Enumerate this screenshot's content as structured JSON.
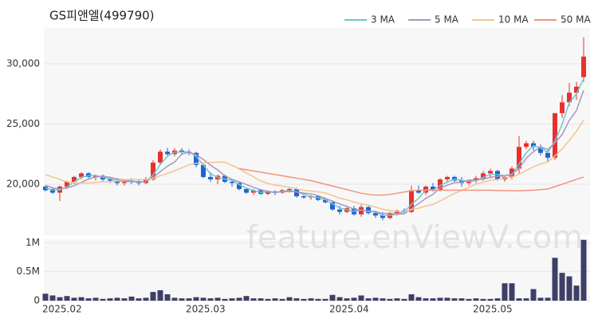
{
  "watermark": "feature.enViewV.com",
  "chart_data": [
    {
      "type": "candlestick",
      "title": "GS피앤엘(499790)",
      "up_color": "#e8312f",
      "down_color": "#1f62d5",
      "open": [
        19800,
        19600,
        19300,
        19800,
        20200,
        20600,
        20900,
        20600,
        20700,
        20400,
        20300,
        20100,
        20300,
        20200,
        20100,
        20400,
        21800,
        22700,
        22500,
        22800,
        22700,
        22600,
        21600,
        20600,
        20400,
        20700,
        20200,
        20100,
        19600,
        19300,
        19500,
        19200,
        19400,
        19300,
        19500,
        19600,
        19000,
        18900,
        19000,
        18700,
        18500,
        17900,
        17700,
        18000,
        17500,
        18100,
        17600,
        17400,
        17200,
        17600,
        17800,
        17700,
        19500,
        19300,
        19800,
        19500,
        20400,
        20600,
        20300,
        20100,
        20300,
        20500,
        20900,
        21100,
        20400,
        20600,
        21300,
        23100,
        23400,
        23100,
        22600,
        22200,
        25900,
        26800,
        27600,
        28900
      ],
      "high": [
        19900,
        19700,
        19900,
        20300,
        20700,
        21000,
        21000,
        20800,
        20800,
        20600,
        20500,
        20400,
        20500,
        20400,
        20600,
        22000,
        22900,
        23000,
        23000,
        23000,
        22900,
        22700,
        21700,
        21000,
        20800,
        20800,
        20400,
        20200,
        19700,
        19600,
        19600,
        19500,
        19500,
        19600,
        19700,
        19700,
        19100,
        19100,
        19100,
        18900,
        18600,
        18200,
        18100,
        18200,
        18300,
        18200,
        17800,
        17700,
        17700,
        17900,
        18000,
        19900,
        19900,
        19900,
        20100,
        20500,
        20700,
        20700,
        20600,
        20400,
        20700,
        21100,
        21300,
        21200,
        20700,
        21500,
        24000,
        23600,
        23600,
        23300,
        22900,
        25900,
        27400,
        28400,
        28500,
        32200
      ],
      "low": [
        19400,
        19200,
        18600,
        19600,
        20000,
        20400,
        20500,
        20300,
        20200,
        20100,
        19900,
        19900,
        20000,
        19900,
        20000,
        20300,
        21600,
        22300,
        22300,
        22500,
        22400,
        21400,
        20500,
        20200,
        20000,
        20100,
        19800,
        19500,
        19200,
        19100,
        19100,
        19100,
        19100,
        19200,
        19300,
        18900,
        18800,
        18700,
        18600,
        18400,
        17800,
        17500,
        17600,
        17400,
        17300,
        17500,
        17200,
        17000,
        17100,
        17400,
        17600,
        17600,
        19200,
        19100,
        19400,
        19400,
        20100,
        20200,
        19800,
        19900,
        20100,
        20300,
        20500,
        20300,
        20200,
        20400,
        20900,
        22900,
        22800,
        22400,
        21800,
        22000,
        25500,
        26500,
        27000,
        28500
      ],
      "close": [
        19500,
        19300,
        19800,
        20200,
        20600,
        20900,
        20600,
        20700,
        20400,
        20300,
        20100,
        20300,
        20200,
        20100,
        20400,
        21800,
        22700,
        22500,
        22800,
        22700,
        22600,
        21600,
        20600,
        20400,
        20700,
        20200,
        20100,
        19600,
        19300,
        19500,
        19200,
        19400,
        19300,
        19500,
        19600,
        19000,
        18900,
        19000,
        18700,
        18500,
        17900,
        17700,
        18000,
        17500,
        18100,
        17600,
        17400,
        17200,
        17600,
        17800,
        17700,
        19500,
        19300,
        19800,
        19500,
        20400,
        20600,
        20300,
        20100,
        20300,
        20500,
        20900,
        21100,
        20400,
        20600,
        21300,
        23100,
        23400,
        23100,
        22600,
        22200,
        25900,
        26800,
        27600,
        28100,
        30600
      ],
      "series": [
        {
          "name": "3 MA",
          "color": "#6cc9c9",
          "values": [
            19700,
            19500,
            19530,
            19770,
            20200,
            20570,
            20700,
            20730,
            20570,
            20470,
            20270,
            20230,
            20200,
            20200,
            20230,
            20770,
            21630,
            22330,
            22670,
            22670,
            22700,
            22300,
            21600,
            20870,
            20570,
            20430,
            20330,
            19970,
            19670,
            19470,
            19330,
            19370,
            19300,
            19400,
            19470,
            19370,
            19170,
            18970,
            18870,
            18730,
            18370,
            18030,
            17870,
            17730,
            17870,
            17730,
            17700,
            17400,
            17400,
            17530,
            17700,
            18330,
            18830,
            19530,
            19530,
            19900,
            20170,
            20430,
            20330,
            20230,
            20300,
            20570,
            20830,
            20800,
            20700,
            20770,
            21670,
            22600,
            23200,
            23030,
            22630,
            23570,
            24970,
            26770,
            27500,
            28770
          ]
        },
        {
          "name": "5 MA",
          "color": "#a995c2",
          "values": [
            19900,
            19700,
            19600,
            19700,
            19880,
            20160,
            20420,
            20600,
            20640,
            20580,
            20420,
            20360,
            20260,
            20200,
            20220,
            20560,
            21040,
            21500,
            21840,
            22500,
            22660,
            22440,
            22060,
            21580,
            21180,
            20700,
            20400,
            20200,
            19980,
            19740,
            19540,
            19400,
            19340,
            19380,
            19400,
            19360,
            19260,
            19200,
            19040,
            18820,
            18600,
            18360,
            18160,
            17920,
            17840,
            17780,
            17720,
            17560,
            17580,
            17520,
            17540,
            17960,
            18380,
            18820,
            19160,
            19700,
            19920,
            20120,
            20180,
            20340,
            20360,
            20420,
            20580,
            20640,
            20700,
            20860,
            21300,
            22160,
            22700,
            23100,
            22880,
            23440,
            24120,
            25300,
            26120,
            27800
          ]
        },
        {
          "name": "10 MA",
          "color": "#f2c48d",
          "values": [
            20800,
            20600,
            20400,
            20200,
            20100,
            20100,
            20100,
            20150,
            20200,
            20200,
            20260,
            20360,
            20410,
            20400,
            20400,
            20490,
            20700,
            20880,
            21120,
            21360,
            21610,
            21740,
            21780,
            21810,
            21840,
            21830,
            21570,
            21280,
            20930,
            20610,
            20280,
            20060,
            19930,
            19840,
            19730,
            19610,
            19490,
            19430,
            19370,
            19270,
            19070,
            18840,
            18710,
            18510,
            18370,
            18250,
            18100,
            17920,
            17810,
            17730,
            17700,
            17880,
            18010,
            18190,
            18330,
            18610,
            18930,
            19240,
            19490,
            19740,
            20020,
            20160,
            20340,
            20400,
            20510,
            20600,
            20830,
            21140,
            21440,
            21680,
            21850,
            22350,
            22920,
            23640,
            24400,
            25320
          ]
        },
        {
          "name": "50 MA",
          "color": "#f2947e",
          "values": [
            null,
            null,
            null,
            null,
            null,
            null,
            null,
            null,
            null,
            null,
            null,
            null,
            null,
            null,
            null,
            null,
            null,
            null,
            null,
            null,
            null,
            null,
            null,
            null,
            null,
            null,
            null,
            21300,
            21200,
            21100,
            21000,
            20900,
            20800,
            20700,
            20600,
            20500,
            20400,
            20300,
            20150,
            20000,
            19850,
            19700,
            19550,
            19400,
            19250,
            19150,
            19100,
            19100,
            19150,
            19250,
            19350,
            19450,
            19500,
            19500,
            19500,
            19500,
            19500,
            19500,
            19500,
            19500,
            19500,
            19500,
            19500,
            19480,
            19460,
            19450,
            19450,
            19480,
            19500,
            19550,
            19600,
            19800,
            20000,
            20200,
            20400,
            20600
          ]
        }
      ],
      "ylim": [
        15760,
        32980
      ],
      "yticks": [
        {
          "value": 20000,
          "label": "20,000"
        },
        {
          "value": 25000,
          "label": "25,000"
        },
        {
          "value": 30000,
          "label": "30,000"
        }
      ]
    },
    {
      "type": "bar",
      "color": "#3d3f66",
      "categories": [
        "2025.02",
        null,
        null,
        null,
        null,
        null,
        null,
        null,
        null,
        null,
        null,
        null,
        null,
        null,
        null,
        null,
        null,
        null,
        null,
        null,
        "2025.03",
        null,
        null,
        null,
        null,
        null,
        null,
        null,
        null,
        null,
        null,
        null,
        null,
        null,
        null,
        null,
        null,
        null,
        null,
        null,
        "2025.04",
        null,
        null,
        null,
        null,
        null,
        null,
        null,
        null,
        null,
        null,
        null,
        null,
        null,
        null,
        null,
        null,
        null,
        null,
        null,
        "2025.05",
        null,
        null,
        null,
        null,
        null,
        null,
        null,
        null,
        null,
        null,
        null,
        null,
        null,
        null,
        null
      ],
      "values": [
        120000,
        90000,
        60000,
        80000,
        50000,
        60000,
        40000,
        50000,
        30000,
        40000,
        50000,
        40000,
        70000,
        40000,
        50000,
        150000,
        180000,
        110000,
        50000,
        40000,
        40000,
        60000,
        50000,
        40000,
        50000,
        30000,
        40000,
        50000,
        80000,
        40000,
        40000,
        30000,
        40000,
        30000,
        60000,
        40000,
        30000,
        40000,
        30000,
        30000,
        100000,
        60000,
        40000,
        50000,
        90000,
        40000,
        50000,
        40000,
        30000,
        40000,
        30000,
        110000,
        60000,
        40000,
        40000,
        50000,
        50000,
        40000,
        40000,
        30000,
        40000,
        30000,
        30000,
        40000,
        300000,
        300000,
        40000,
        40000,
        200000,
        50000,
        50000,
        740000,
        480000,
        420000,
        260000,
        1050000
      ],
      "ylim": [
        0,
        1060000
      ],
      "yticks": [
        0,
        {
          "value": 500000,
          "label": "0.5M"
        },
        {
          "value": 1000000,
          "label": "1M"
        }
      ]
    }
  ]
}
